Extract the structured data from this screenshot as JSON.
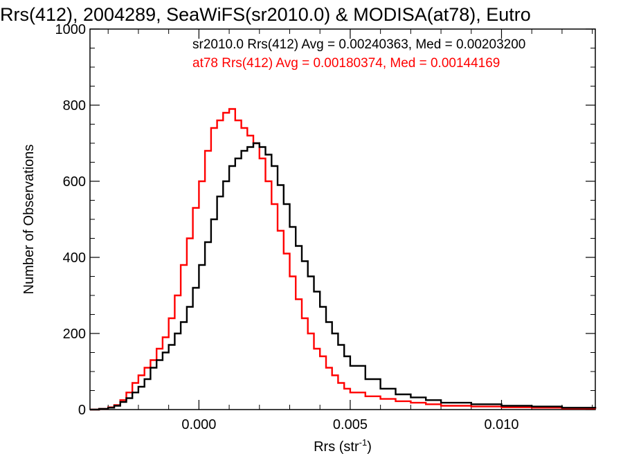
{
  "chart_data": {
    "type": "line",
    "title": "Rrs(412), 2004289, SeaWiFS(sr2010.0) & MODISA(at78), Eutro",
    "xlabel": "Rrs (str",
    "xlabel_sup": "-1",
    "xlabel_end": ")",
    "ylabel": "Number of Observations",
    "xlim": [
      -0.0036,
      0.0131
    ],
    "ylim": [
      0,
      1000
    ],
    "xticks": [
      0.0,
      0.005,
      0.01
    ],
    "xtick_labels": [
      "0.000",
      "0.005",
      "0.010"
    ],
    "yticks": [
      0,
      200,
      400,
      600,
      800,
      1000
    ],
    "ytick_labels": [
      "0",
      "200",
      "400",
      "600",
      "800",
      "1000"
    ],
    "grid": false,
    "legend_position": "top-right",
    "series": [
      {
        "name": "sr2010.0 Rrs(412) Avg = 0.00240363, Med = 0.00203200",
        "color": "#000000",
        "x": [
          -0.0036,
          -0.0033,
          -0.003,
          -0.0028,
          -0.0026,
          -0.0024,
          -0.0022,
          -0.002,
          -0.0018,
          -0.0016,
          -0.0014,
          -0.0012,
          -0.001,
          -0.0008,
          -0.0006,
          -0.0004,
          -0.0002,
          0.0,
          0.0002,
          0.0004,
          0.0006,
          0.0008,
          0.001,
          0.0012,
          0.0014,
          0.0016,
          0.0018,
          0.002,
          0.0022,
          0.0024,
          0.0026,
          0.0028,
          0.003,
          0.0032,
          0.0034,
          0.0036,
          0.0038,
          0.004,
          0.0042,
          0.0044,
          0.0046,
          0.0048,
          0.005,
          0.0055,
          0.006,
          0.0065,
          0.007,
          0.0075,
          0.008,
          0.009,
          0.01,
          0.011,
          0.012,
          0.0131
        ],
        "values": [
          0,
          2,
          5,
          10,
          20,
          30,
          45,
          60,
          80,
          110,
          130,
          150,
          170,
          200,
          230,
          270,
          320,
          380,
          440,
          500,
          560,
          600,
          640,
          660,
          680,
          690,
          700,
          690,
          670,
          640,
          590,
          540,
          480,
          430,
          390,
          350,
          310,
          270,
          230,
          200,
          170,
          140,
          115,
          80,
          55,
          40,
          32,
          25,
          18,
          14,
          10,
          8,
          5,
          3
        ]
      },
      {
        "name": "at78 Rrs(412) Avg = 0.00180374, Med = 0.00144169",
        "color": "#ff0000",
        "x": [
          -0.0036,
          -0.0033,
          -0.003,
          -0.0028,
          -0.0026,
          -0.0024,
          -0.0022,
          -0.002,
          -0.0018,
          -0.0016,
          -0.0014,
          -0.0012,
          -0.001,
          -0.0008,
          -0.0006,
          -0.0004,
          -0.0002,
          0.0,
          0.0002,
          0.0004,
          0.0006,
          0.0008,
          0.001,
          0.0012,
          0.0014,
          0.0016,
          0.0018,
          0.002,
          0.0022,
          0.0024,
          0.0026,
          0.0028,
          0.003,
          0.0032,
          0.0034,
          0.0036,
          0.0038,
          0.004,
          0.0042,
          0.0044,
          0.0046,
          0.0048,
          0.005,
          0.0055,
          0.006,
          0.0065,
          0.007,
          0.0075,
          0.008,
          0.009,
          0.01,
          0.011,
          0.012,
          0.0131
        ],
        "values": [
          0,
          2,
          6,
          12,
          25,
          45,
          70,
          90,
          110,
          130,
          160,
          190,
          240,
          300,
          380,
          450,
          530,
          600,
          680,
          740,
          760,
          780,
          790,
          760,
          740,
          720,
          700,
          660,
          600,
          540,
          470,
          410,
          350,
          290,
          240,
          200,
          160,
          140,
          110,
          90,
          70,
          55,
          45,
          35,
          28,
          22,
          18,
          14,
          10,
          8,
          6,
          5,
          3,
          2
        ]
      }
    ]
  }
}
